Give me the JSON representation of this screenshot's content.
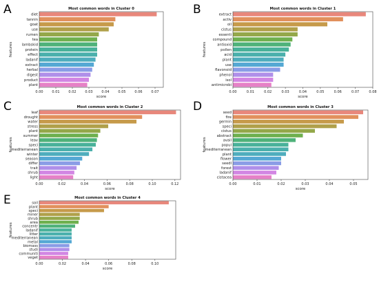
{
  "palette": [
    "#e8877b",
    "#e1905c",
    "#c69a4a",
    "#b0a04a",
    "#94a84a",
    "#6eb04e",
    "#4fb27a",
    "#49b29a",
    "#4ab0ac",
    "#4eadbd",
    "#55a8d4",
    "#8a9ce6",
    "#b08fe9",
    "#d286e3",
    "#e681c7"
  ],
  "chart_data": [
    {
      "panel": "A",
      "type": "bar",
      "orientation": "horizontal",
      "title": "Most common words in Cluster 0",
      "xlabel": "score",
      "ylabel": "features",
      "xlim": [
        0,
        0.075
      ],
      "xticks": [
        "0.00",
        "0.01",
        "0.02",
        "0.03",
        "0.04",
        "0.05",
        "0.06",
        "0.07"
      ],
      "categories": [
        "diet",
        "tannin",
        "goat",
        "use",
        "rumen",
        "tea",
        "lambskid",
        "protein",
        "effect",
        "ladanif",
        "extract",
        "herbal",
        "digest",
        "product",
        "plant"
      ],
      "values": [
        0.071,
        0.046,
        0.045,
        0.042,
        0.036,
        0.035,
        0.035,
        0.035,
        0.035,
        0.034,
        0.033,
        0.032,
        0.031,
        0.03,
        0.029
      ]
    },
    {
      "panel": "B",
      "type": "bar",
      "orientation": "horizontal",
      "title": "Most common words in Cluster 1",
      "xlabel": "score",
      "ylabel": "features",
      "xlim": [
        0,
        0.08
      ],
      "xticks": [
        "0.00",
        "0.01",
        "0.02",
        "0.03",
        "0.04",
        "0.05",
        "0.06",
        "0.07",
        "0.08"
      ],
      "categories": [
        "extract",
        "activ",
        "oil",
        "cistus",
        "essenti",
        "compound",
        "antioxid",
        "pollen",
        "acid",
        "plant",
        "use",
        "flavonoid",
        "phenol",
        "isol",
        "antimicrobi"
      ],
      "values": [
        0.076,
        0.063,
        0.054,
        0.037,
        0.037,
        0.034,
        0.033,
        0.032,
        0.03,
        0.029,
        0.029,
        0.027,
        0.023,
        0.023,
        0.022
      ]
    },
    {
      "panel": "C",
      "type": "bar",
      "orientation": "horizontal",
      "title": "Most common words in Cluster 2",
      "xlabel": "score",
      "ylabel": "features",
      "xlim": [
        0,
        0.125
      ],
      "xticks": [
        "0.00",
        "0.02",
        "0.04",
        "0.06",
        "0.08",
        "0.10",
        "0.12"
      ],
      "categories": [
        "leaf",
        "drought",
        "water",
        "stress",
        "plant",
        "summer",
        "leav",
        "speci",
        "mediterranean",
        "winter",
        "season",
        "differ",
        "trait",
        "shrub",
        "light"
      ],
      "values": [
        0.121,
        0.091,
        0.086,
        0.061,
        0.054,
        0.052,
        0.051,
        0.05,
        0.047,
        0.044,
        0.038,
        0.036,
        0.033,
        0.031,
        0.03
      ]
    },
    {
      "panel": "D",
      "type": "bar",
      "orientation": "horizontal",
      "title": "Most common words in Cluster 3",
      "xlabel": "score",
      "ylabel": "features",
      "xlim": [
        0,
        0.056
      ],
      "xticks": [
        "0.00",
        "0.01",
        "0.02",
        "0.03",
        "0.04",
        "0.05"
      ],
      "categories": [
        "seed",
        "fire",
        "germin",
        "speci",
        "cistus",
        "abstract",
        "avail",
        "popul",
        "mediterranean",
        "plant",
        "flower",
        "seedl",
        "forest",
        "ladanif",
        "cistacea"
      ],
      "values": [
        0.054,
        0.052,
        0.046,
        0.043,
        0.034,
        0.029,
        0.026,
        0.023,
        0.023,
        0.022,
        0.02,
        0.02,
        0.019,
        0.018,
        0.016
      ]
    },
    {
      "panel": "E",
      "type": "bar",
      "orientation": "horizontal",
      "title": "Most common words in Cluster 4",
      "xlabel": "score",
      "ylabel": "features",
      "xlim": [
        0,
        0.118
      ],
      "xticks": [
        "0.00",
        "0.02",
        "0.04",
        "0.06",
        "0.08",
        "0.10"
      ],
      "categories": [
        "soil",
        "plant",
        "speci",
        "miner",
        "shrub",
        "area",
        "concentr",
        "ladanif",
        "litter",
        "mediterranean",
        "metal",
        "biomass",
        "studi",
        "communiti",
        "veget"
      ],
      "values": [
        0.112,
        0.06,
        0.056,
        0.035,
        0.035,
        0.034,
        0.031,
        0.028,
        0.028,
        0.028,
        0.028,
        0.026,
        0.026,
        0.025,
        0.025
      ]
    }
  ]
}
